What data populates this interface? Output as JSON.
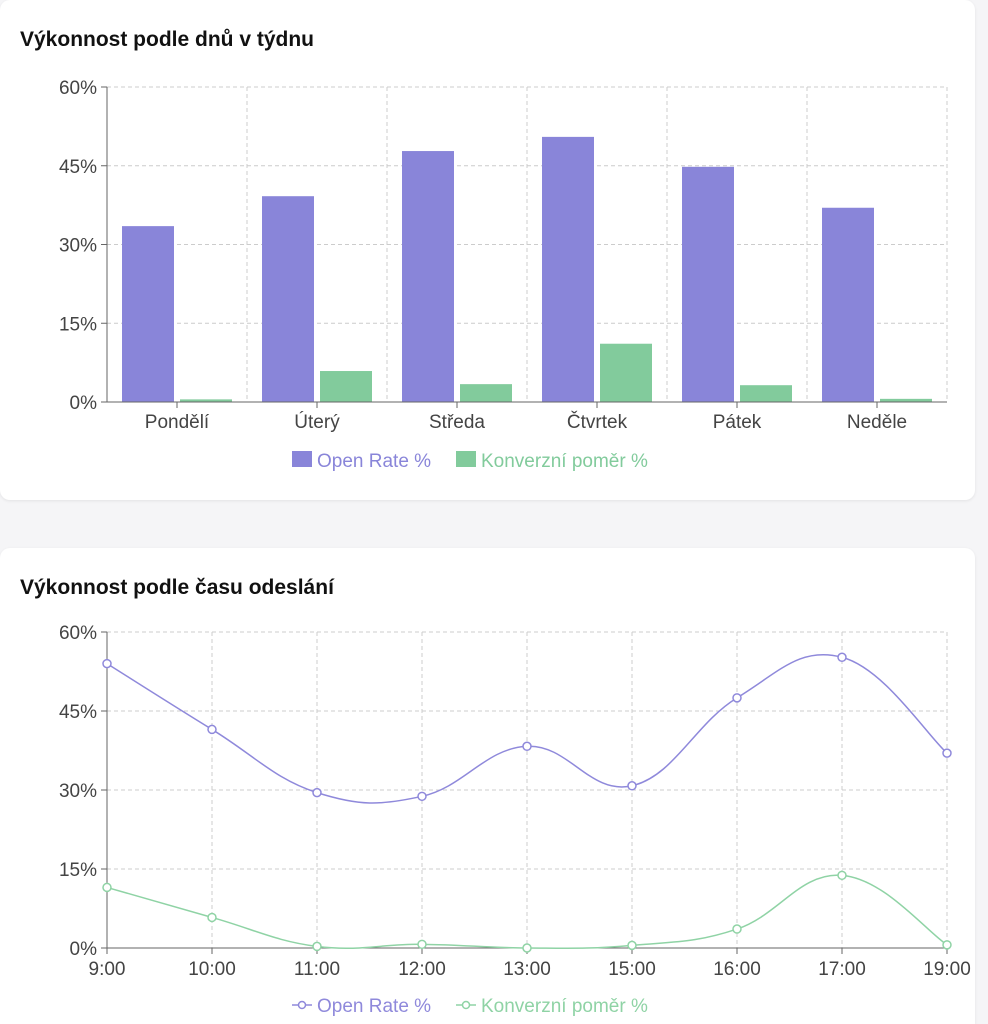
{
  "charts": [
    {
      "title": "Výkonnost podle dnů v týdnu"
    },
    {
      "title": "Výkonnost podle času odeslání"
    }
  ],
  "colors": {
    "open_rate": "#8985d9",
    "conversion": "#82cb9c",
    "open_line": "#8f89db",
    "conversion_line": "#8fd3a5",
    "grid": "#cccccc",
    "axis": "#666666"
  },
  "chart_data": [
    {
      "type": "bar",
      "title": "Výkonnost podle dnů v týdnu",
      "categories": [
        "Pondělí",
        "Úterý",
        "Středa",
        "Čtvrtek",
        "Pátek",
        "Neděle"
      ],
      "series": [
        {
          "name": "Open Rate %",
          "values": [
            33.5,
            39.2,
            47.8,
            50.5,
            44.8,
            37.0
          ]
        },
        {
          "name": "Konverzní poměr %",
          "values": [
            0.5,
            5.9,
            3.4,
            11.1,
            3.2,
            0.6
          ]
        }
      ],
      "ylim": [
        0,
        60
      ],
      "yticks": [
        "0%",
        "15%",
        "30%",
        "45%",
        "60%"
      ],
      "grid": true,
      "legend": "bottom"
    },
    {
      "type": "line",
      "title": "Výkonnost podle času odeslání",
      "x": [
        "9:00",
        "10:00",
        "11:00",
        "12:00",
        "13:00",
        "15:00",
        "16:00",
        "17:00",
        "19:00"
      ],
      "series": [
        {
          "name": "Open Rate %",
          "values": [
            54.0,
            41.5,
            29.5,
            28.8,
            38.3,
            30.8,
            47.5,
            55.2,
            37.0
          ]
        },
        {
          "name": "Konverzní poměr %",
          "values": [
            11.5,
            5.8,
            0.3,
            0.7,
            0.0,
            0.5,
            3.6,
            13.8,
            0.6
          ]
        }
      ],
      "ylim": [
        0,
        60
      ],
      "yticks": [
        "0%",
        "15%",
        "30%",
        "45%",
        "60%"
      ],
      "grid": true,
      "legend": "bottom"
    }
  ]
}
